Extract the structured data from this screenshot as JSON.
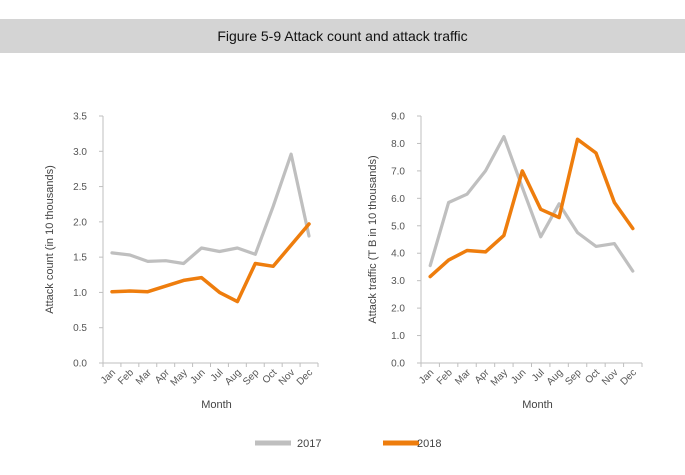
{
  "title": "Figure 5-9 Attack count and attack traffic",
  "colors": {
    "2017": "#bfbfbf",
    "2018": "#ee7d0d",
    "axis": "#bfbfbf",
    "title_bg": "#d4d4d4"
  },
  "legend": [
    "2017",
    "2018"
  ],
  "chart_data": [
    {
      "type": "line",
      "categories": [
        "Jan",
        "Feb",
        "Mar",
        "Apr",
        "May",
        "Jun",
        "Jul",
        "Aug",
        "Sep",
        "Oct",
        "Nov",
        "Dec"
      ],
      "xlabel": "Month",
      "ylabel": "Attack count (in 10 thousands)",
      "ylim": [
        0,
        3.5
      ],
      "yticks": [
        "0.0",
        "0.5",
        "1.0",
        "1.5",
        "2.0",
        "2.5",
        "3.0",
        "3.5"
      ],
      "series": [
        {
          "name": "2017",
          "values": [
            1.56,
            1.53,
            1.44,
            1.45,
            1.41,
            1.63,
            1.58,
            1.63,
            1.54,
            2.22,
            2.96,
            1.8
          ]
        },
        {
          "name": "2018",
          "values": [
            1.01,
            1.02,
            1.01,
            1.09,
            1.17,
            1.21,
            1.0,
            0.87,
            1.41,
            1.37,
            1.67,
            1.97
          ]
        }
      ],
      "grid": false
    },
    {
      "type": "line",
      "categories": [
        "Jan",
        "Feb",
        "Mar",
        "Apr",
        "May",
        "Jun",
        "Jul",
        "Aug",
        "Sep",
        "Oct",
        "Nov",
        "Dec"
      ],
      "xlabel": "Month",
      "ylabel": "Attack traffic (T B in 10 thousands)",
      "ylim": [
        0,
        9.0
      ],
      "yticks": [
        "0.0",
        "1.0",
        "2.0",
        "3.0",
        "4.0",
        "5.0",
        "6.0",
        "7.0",
        "8.0",
        "9.0"
      ],
      "series": [
        {
          "name": "2017",
          "values": [
            3.55,
            5.85,
            6.15,
            7.0,
            8.25,
            6.4,
            4.6,
            5.8,
            4.75,
            4.25,
            4.35,
            3.35
          ]
        },
        {
          "name": "2018",
          "values": [
            3.15,
            3.75,
            4.1,
            4.05,
            4.65,
            7.0,
            5.6,
            5.3,
            8.15,
            7.65,
            5.85,
            4.9
          ]
        }
      ],
      "grid": false
    }
  ]
}
